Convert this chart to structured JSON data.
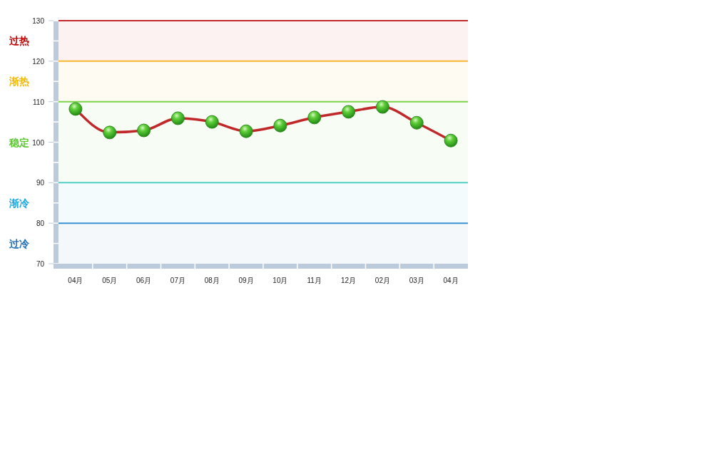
{
  "chart_data": {
    "type": "line",
    "categories": [
      "04月",
      "05月",
      "06月",
      "07月",
      "08月",
      "09月",
      "10月",
      "11月",
      "12月",
      "02月",
      "03月",
      "04月"
    ],
    "series": [
      {
        "color": "#c0282a",
        "values": [
          108.2,
          102.4,
          102.9,
          105.9,
          105.0,
          102.7,
          104.1,
          106.1,
          107.5,
          108.7,
          104.8,
          100.4
        ]
      }
    ],
    "marker": "circle",
    "ylim": [
      70,
      130
    ],
    "yticks": [
      70,
      80,
      90,
      100,
      110,
      120,
      130
    ],
    "grid": false,
    "ref_lines": [
      {
        "axis": "y",
        "value": 130,
        "color": "#c0282a"
      },
      {
        "axis": "y",
        "value": 120,
        "color": "#f7b731"
      },
      {
        "axis": "y",
        "value": 110,
        "color": "#7ed348"
      },
      {
        "axis": "y",
        "value": 90,
        "color": "#4fd1c5"
      },
      {
        "axis": "y",
        "value": 80,
        "color": "#3a8fd0"
      }
    ],
    "bands": [
      {
        "axis": "y",
        "from": 120,
        "to": 130,
        "label": "过热",
        "color": "#c00000"
      },
      {
        "axis": "y",
        "from": 110,
        "to": 120,
        "label": "渐热",
        "color": "#f5b800"
      },
      {
        "axis": "y",
        "from": 90,
        "to": 110,
        "label": "稳定",
        "color": "#5cc832"
      },
      {
        "axis": "y",
        "from": 80,
        "to": 90,
        "label": "渐冷",
        "color": "#19a8e0"
      },
      {
        "axis": "y",
        "from": 70,
        "to": 80,
        "label": "过冷",
        "color": "#1f6fb8"
      }
    ]
  }
}
